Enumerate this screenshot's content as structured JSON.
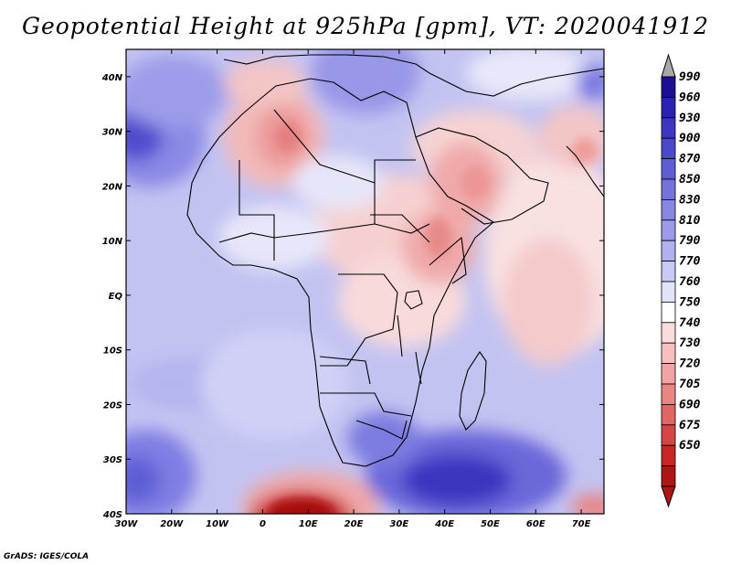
{
  "title": "Geopotential Height at 925hPa [gpm], VT: 2020041912",
  "credit": "GrADS: IGES/COLA",
  "axes": {
    "lon_labels": [
      "30W",
      "20W",
      "10W",
      "0",
      "10E",
      "20E",
      "30E",
      "40E",
      "50E",
      "60E",
      "70E"
    ],
    "lat_labels": [
      "40N",
      "30N",
      "20N",
      "10N",
      "EQ",
      "10S",
      "20S",
      "30S",
      "40S"
    ]
  },
  "chart_data": {
    "type": "heatmap",
    "variable": "Geopotential Height",
    "level": "925hPa",
    "units": "gpm",
    "valid_time": "2020041912",
    "lon_range": [
      -30,
      75
    ],
    "lat_range": [
      -40,
      45
    ],
    "colorbar": {
      "levels": [
        "990",
        "960",
        "930",
        "900",
        "870",
        "850",
        "830",
        "810",
        "790",
        "770",
        "760",
        "750",
        "740",
        "730",
        "720",
        "705",
        "690",
        "675",
        "650"
      ],
      "colors": [
        "#1c0f96",
        "#2a22b0",
        "#3b35c1",
        "#4c48cc",
        "#5f5dd6",
        "#7372de",
        "#8786e4",
        "#9b9be9",
        "#b1b1ef",
        "#c9c9f4",
        "#e2e2f9",
        "#ffffff",
        "#fbdcdc",
        "#f6c0c0",
        "#f0a4a4",
        "#e98585",
        "#e16565",
        "#d84444",
        "#c92727",
        "#b01515"
      ],
      "top_arrow_color": "#a9a9a9"
    }
  }
}
